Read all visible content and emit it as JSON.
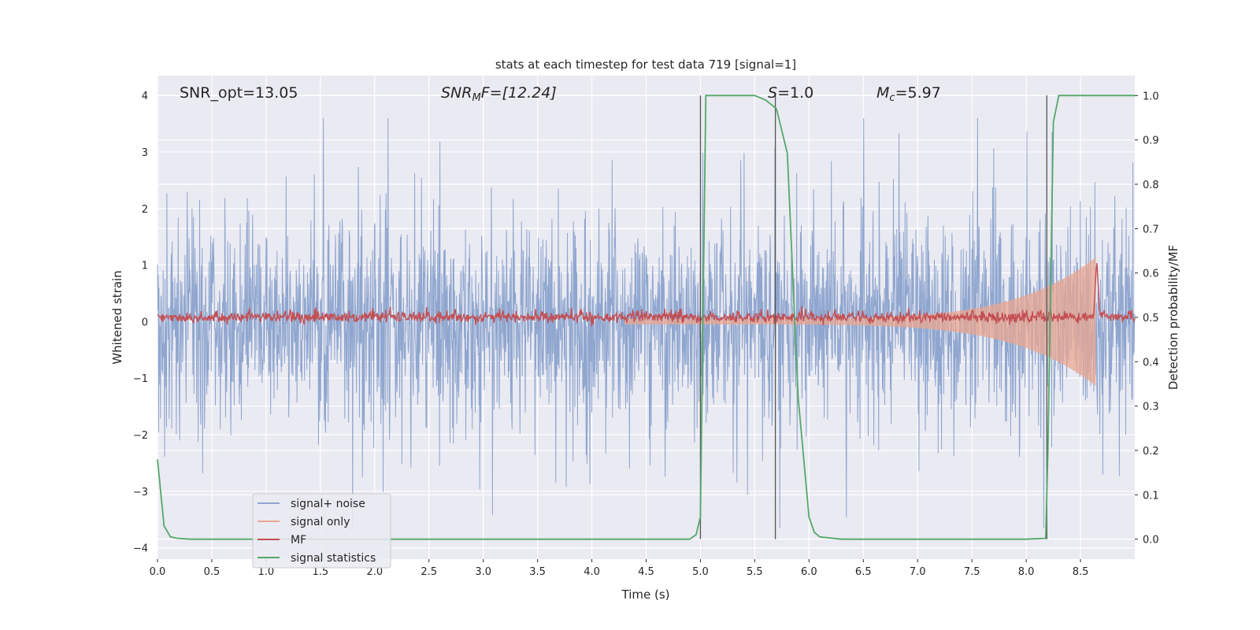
{
  "chart_data": {
    "type": "line",
    "title": "stats at each timestep for test data 719 [signal=1]",
    "xlabel": "Time (s)",
    "ylabel_left": "Whitened strain",
    "ylabel_right": "Detection probability/MF",
    "xlim": [
      0.0,
      9.0
    ],
    "ylim_left": [
      -4.2,
      4.35
    ],
    "ylim_right": [
      -0.045,
      1.045
    ],
    "x_ticks": [
      "0.0",
      "0.5",
      "1.0",
      "1.5",
      "2.0",
      "2.5",
      "3.0",
      "3.5",
      "4.0",
      "4.5",
      "5.0",
      "5.5",
      "6.0",
      "6.5",
      "7.0",
      "7.5",
      "8.0",
      "8.5"
    ],
    "y_left_ticks": [
      "−4",
      "−3",
      "−2",
      "−1",
      "0",
      "1",
      "2",
      "3",
      "4"
    ],
    "y_right_ticks": [
      "0.0",
      "0.1",
      "0.2",
      "0.3",
      "0.4",
      "0.5",
      "0.6",
      "0.7",
      "0.8",
      "0.9",
      "1.0"
    ],
    "grid": true,
    "legend_position": "lower-left",
    "annotations": {
      "snr_opt": "SNR_opt=13.05",
      "snr_mf_prefix": "SNR",
      "snr_mf_sub": "M",
      "snr_mf_suffix": "F=[12.24]",
      "s_prefix": "S",
      "s_suffix": "=1.0",
      "mc_prefix": "M",
      "mc_sub": "c",
      "mc_suffix": "=5.97"
    },
    "vertical_lines_x": [
      5.0,
      5.69,
      8.19
    ],
    "series": [
      {
        "name": "signal+ noise",
        "color": "#8fa6cf",
        "description_values": "noise band approx ±1.5, peaks to ±3.6 over 0–9 s"
      },
      {
        "name": "signal only",
        "color": "#e9a690",
        "description_values": "chirp amplitude grows from ~0.05 at 4.3 s to ~1.2 at 8.65 s"
      },
      {
        "name": "MF",
        "color": "#c44e52",
        "description_values": "fluctuates around 0.5 on right axis, spike to 0.63 at 8.65 s"
      },
      {
        "name": "signal statistics",
        "color": "#55a868",
        "x": [
          0.0,
          0.06,
          0.12,
          0.18,
          0.3,
          0.5,
          1.0,
          2.0,
          3.0,
          4.0,
          4.9,
          4.96,
          5.0,
          5.05,
          5.1,
          5.5,
          5.6,
          5.65,
          5.7,
          5.8,
          5.9,
          6.0,
          6.05,
          6.1,
          6.3,
          7.0,
          8.0,
          8.18,
          8.2,
          8.25,
          8.3,
          8.5,
          9.0
        ],
        "y": [
          0.18,
          0.03,
          0.005,
          0.002,
          0.0,
          0.0,
          0.0,
          0.0,
          0.0,
          0.0,
          0.0,
          0.01,
          0.05,
          1.0,
          1.0,
          1.0,
          0.99,
          0.98,
          0.97,
          0.87,
          0.32,
          0.05,
          0.015,
          0.005,
          0.0,
          0.0,
          0.0,
          0.002,
          0.2,
          0.94,
          1.0,
          1.0,
          1.0
        ]
      }
    ]
  }
}
